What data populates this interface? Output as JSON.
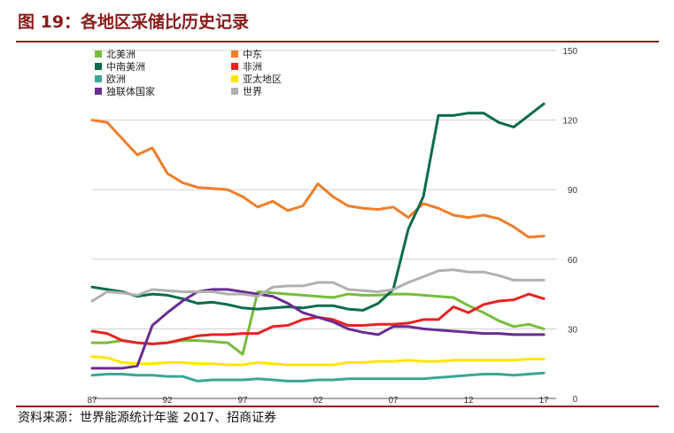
{
  "figure": {
    "title": "图 19：各地区采储比历史记录",
    "source": "资料来源：世界能源统计年鉴 2017、招商证券"
  },
  "chart_data": {
    "type": "line",
    "x": [
      1987,
      1988,
      1989,
      1990,
      1991,
      1992,
      1993,
      1994,
      1995,
      1996,
      1997,
      1998,
      1999,
      2000,
      2001,
      2002,
      2003,
      2004,
      2005,
      2006,
      2007,
      2008,
      2009,
      2010,
      2011,
      2012,
      2013,
      2014,
      2015,
      2016,
      2017
    ],
    "xticks": [
      "87",
      "92",
      "97",
      "02",
      "07",
      "12",
      "17"
    ],
    "xlim": [
      1987,
      2017
    ],
    "ylim": [
      0,
      150
    ],
    "yticks": [
      0,
      30,
      60,
      90,
      120,
      150
    ],
    "grid": "horizontal",
    "y_axis_side": "right",
    "legend_position": "top-left",
    "series": [
      {
        "name": "北美洲",
        "color": "#77bc3f",
        "values": [
          24,
          24,
          25,
          24,
          23.5,
          24,
          25,
          25,
          24.5,
          24,
          19,
          46,
          45.5,
          45,
          44.5,
          44,
          43.5,
          45,
          44.5,
          44.5,
          45,
          45,
          44.5,
          44,
          43.5,
          40,
          37,
          33.5,
          31,
          32,
          30
        ]
      },
      {
        "name": "中东",
        "color": "#ef7e2a",
        "values": [
          120,
          119,
          112,
          105,
          108,
          97,
          93,
          91,
          90.5,
          90,
          87,
          82.5,
          85,
          81,
          83,
          92.5,
          87,
          83,
          82,
          81.5,
          82.5,
          78,
          84,
          82,
          79,
          78,
          79,
          77.5,
          74,
          69.5,
          70
        ]
      },
      {
        "name": "中南美洲",
        "color": "#0c6b4e",
        "values": [
          48,
          47,
          46,
          44,
          45,
          44.5,
          43,
          41,
          41.5,
          40.5,
          39,
          38.5,
          39,
          39.5,
          39,
          40,
          40,
          38.5,
          38,
          41,
          47,
          73,
          87,
          122,
          122,
          123,
          123,
          119,
          117,
          122,
          127
        ]
      },
      {
        "name": "非洲",
        "color": "#e52322",
        "values": [
          29,
          28,
          25,
          24,
          23.5,
          24,
          25.5,
          27,
          27.5,
          27.5,
          28,
          28,
          31,
          31.5,
          34,
          35,
          34,
          31.5,
          31.5,
          32,
          32,
          32.5,
          34,
          34,
          39.5,
          37,
          40.5,
          42,
          42.5,
          45,
          43
        ]
      },
      {
        "name": "欧洲",
        "color": "#3aa796",
        "values": [
          10,
          10.5,
          10.5,
          10,
          10,
          9.5,
          9.5,
          7.5,
          8,
          8,
          8,
          8.5,
          8,
          7.5,
          7.5,
          8,
          8,
          8.5,
          8.5,
          8.5,
          8.5,
          8.5,
          8.5,
          9,
          9.5,
          10,
          10.5,
          10.5,
          10,
          10.5,
          11
        ]
      },
      {
        "name": "亚太地区",
        "color": "#ffe600",
        "values": [
          18,
          17.5,
          15.5,
          15,
          15,
          15.5,
          15.5,
          15,
          15,
          14.5,
          14.5,
          15.5,
          15,
          14.5,
          14.5,
          14.5,
          14.5,
          15.5,
          15.5,
          16,
          16,
          16.5,
          16,
          16,
          16.5,
          16.5,
          16.5,
          16.5,
          16.5,
          17,
          17
        ]
      },
      {
        "name": "独联体国家",
        "color": "#6a2c91",
        "values": [
          13,
          13,
          13,
          14,
          31.5,
          37,
          42,
          46,
          47,
          47,
          46,
          45,
          44,
          41,
          37,
          35,
          33,
          30,
          28.5,
          27.5,
          31,
          31,
          30,
          29.5,
          29,
          28.5,
          28,
          28,
          27.5,
          27.5,
          27.5
        ]
      },
      {
        "name": "世界",
        "color": "#b1b1b1",
        "values": [
          42,
          46,
          45.5,
          44.5,
          47,
          46.5,
          46,
          46,
          46,
          45,
          45,
          44,
          48,
          48.5,
          48.5,
          50,
          50,
          47,
          46.5,
          46,
          47,
          50,
          52.5,
          55,
          55.5,
          54.5,
          54.5,
          53,
          51,
          51,
          51
        ]
      }
    ]
  }
}
